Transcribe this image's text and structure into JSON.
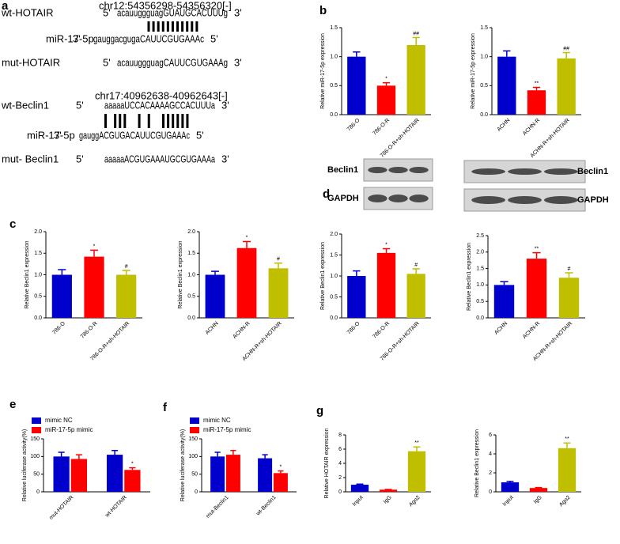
{
  "figure": {
    "panel_labels": [
      "a",
      "b",
      "c",
      "d",
      "e",
      "f",
      "g"
    ]
  },
  "sequence_panel": {
    "blocks": [
      {
        "coordinates": "chr12:54356298-54356320[-]",
        "rows": [
          {
            "name": "wt-HOTAIR",
            "end5": "5'",
            "sequence": "acauuggguagGUAUGCACUUUg",
            "end3": "3'"
          },
          {
            "name": "miR-17-5p",
            "end5": "3'",
            "sequence": "gauggacgugaCAUUCGUGAAAc",
            "end3": "5'"
          },
          {
            "name": "mut-HOTAIR",
            "end5": "5'",
            "sequence": "acauuggguagCAUUCGUGAAAg",
            "end3": "3'"
          }
        ]
      },
      {
        "coordinates": "chr17:40962638-40962643[-]",
        "rows": [
          {
            "name": "wt-Beclin1",
            "end5": "5'",
            "sequence": "aaaaaUCCACAAAAGCCACUUUa",
            "end3": "3'"
          },
          {
            "name": "miR-17-5p",
            "end5": "3'",
            "sequence": "gauggACGUGACAUUCGUGAAAc",
            "end3": "5'"
          },
          {
            "name": "mut- Beclin1",
            "end5": "5'",
            "sequence": "aaaaaACGUGAAAUGCGUGAAAa",
            "end3": "3'"
          }
        ]
      }
    ]
  },
  "chart_data": [
    {
      "type": "bar",
      "ylabel": "Relative miR-17-5p expression",
      "categories": [
        "786-O",
        "786-O-R",
        "786-O-R+sh-HOTAIR"
      ],
      "values": [
        1.0,
        0.5,
        1.2
      ],
      "errors": [
        0.08,
        0.05,
        0.13
      ],
      "annotations": [
        null,
        "*",
        "##"
      ],
      "colors": [
        "#0000cc",
        "#ff0000",
        "#bfbf00"
      ],
      "ylim": [
        0,
        1.5
      ],
      "yticks": [
        {
          "value": 0,
          "label": "0.0"
        },
        {
          "value": 0.5,
          "label": "0.5"
        },
        {
          "value": 1,
          "label": "1.0"
        },
        {
          "value": 1.5,
          "label": "1.5"
        }
      ]
    },
    {
      "type": "bar",
      "ylabel": "Relative miR-17-5p expression",
      "categories": [
        "ACHN",
        "ACHN-R",
        "ACHN-R+sh-HOTAIR"
      ],
      "values": [
        1.0,
        0.42,
        0.97
      ],
      "errors": [
        0.1,
        0.05,
        0.1
      ],
      "annotations": [
        null,
        "**",
        "##"
      ],
      "colors": [
        "#0000cc",
        "#ff0000",
        "#bfbf00"
      ],
      "ylim": [
        0,
        1.5
      ],
      "yticks": [
        {
          "value": 0,
          "label": "0.0"
        },
        {
          "value": 0.5,
          "label": "0.5"
        },
        {
          "value": 1,
          "label": "1.0"
        },
        {
          "value": 1.5,
          "label": "1.5"
        }
      ]
    },
    {
      "type": "bar",
      "ylabel": "Relative Beclin1 expression",
      "categories": [
        "786-O",
        "786-O-R",
        "786-O-R+sh-HOTAIR"
      ],
      "values": [
        1.0,
        1.42,
        1.0
      ],
      "errors": [
        0.12,
        0.15,
        0.1
      ],
      "annotations": [
        null,
        "*",
        "#"
      ],
      "colors": [
        "#0000cc",
        "#ff0000",
        "#bfbf00"
      ],
      "ylim": [
        0,
        2
      ],
      "yticks": [
        {
          "value": 0,
          "label": "0.0"
        },
        {
          "value": 0.5,
          "label": "0.5"
        },
        {
          "value": 1,
          "label": "1.0"
        },
        {
          "value": 1.5,
          "label": "1.5"
        },
        {
          "value": 2,
          "label": "2.0"
        }
      ]
    },
    {
      "type": "bar",
      "ylabel": "Relative Beclin1 expression",
      "categories": [
        "ACHN",
        "ACHN-R",
        "ACHN-R+sh-HOTAIR"
      ],
      "values": [
        1.0,
        1.62,
        1.15
      ],
      "errors": [
        0.08,
        0.15,
        0.12
      ],
      "annotations": [
        null,
        "*",
        "#"
      ],
      "colors": [
        "#0000cc",
        "#ff0000",
        "#bfbf00"
      ],
      "ylim": [
        0,
        2
      ],
      "yticks": [
        {
          "value": 0,
          "label": "0.0"
        },
        {
          "value": 0.5,
          "label": "0.5"
        },
        {
          "value": 1,
          "label": "1.0"
        },
        {
          "value": 1.5,
          "label": "1.5"
        },
        {
          "value": 2,
          "label": "2.0"
        }
      ]
    },
    {
      "type": "bar",
      "ylabel": "Relative Beclin1 expression",
      "blot_labels": [
        "Beclin1",
        "GAPDH"
      ],
      "categories": [
        "786-O",
        "786-O-R",
        "786-O-R+sh-HOTAIR"
      ],
      "values": [
        1.0,
        1.55,
        1.05
      ],
      "errors": [
        0.12,
        0.1,
        0.12
      ],
      "annotations": [
        null,
        "*",
        "#"
      ],
      "colors": [
        "#0000cc",
        "#ff0000",
        "#bfbf00"
      ],
      "ylim": [
        0,
        2
      ],
      "yticks": [
        {
          "value": 0,
          "label": "0.0"
        },
        {
          "value": 0.5,
          "label": "0.5"
        },
        {
          "value": 1,
          "label": "1.0"
        },
        {
          "value": 1.5,
          "label": "1.5"
        },
        {
          "value": 2,
          "label": "2.0"
        }
      ]
    },
    {
      "type": "bar",
      "ylabel": "Relative Beclin1 expression",
      "blot_labels": [
        "Beclin1",
        "GAPDH"
      ],
      "categories": [
        "ACHN",
        "ACHN-R",
        "ACHN-R+sh-HOTAIR"
      ],
      "values": [
        1.0,
        1.8,
        1.22
      ],
      "errors": [
        0.1,
        0.18,
        0.15
      ],
      "annotations": [
        null,
        "**",
        "#"
      ],
      "colors": [
        "#0000cc",
        "#ff0000",
        "#bfbf00"
      ],
      "ylim": [
        0,
        2.5
      ],
      "yticks": [
        {
          "value": 0,
          "label": "0.0"
        },
        {
          "value": 0.5,
          "label": "0.5"
        },
        {
          "value": 1,
          "label": "1.0"
        },
        {
          "value": 1.5,
          "label": "1.5"
        },
        {
          "value": 2,
          "label": "2.0"
        },
        {
          "value": 2.5,
          "label": "2.5"
        }
      ]
    },
    {
      "type": "bar",
      "ylabel": "Relative luciferase activity(%)",
      "legend": "top-left",
      "categories": [
        "mut-HOTAIR",
        "wt-HOTAIR"
      ],
      "series": [
        {
          "name": "mimic NC",
          "color": "#0000cc",
          "values": [
            100,
            105
          ],
          "errors": [
            12,
            12
          ],
          "annotations": [
            null,
            null
          ]
        },
        {
          "name": "miR-17-5p mimic",
          "color": "#ff0000",
          "values": [
            93,
            62
          ],
          "errors": [
            12,
            6
          ],
          "annotations": [
            null,
            "*"
          ]
        }
      ],
      "ylim": [
        0,
        150
      ],
      "yticks": [
        0,
        50,
        100,
        150
      ]
    },
    {
      "type": "bar",
      "ylabel": "Relative luciferase activity(%)",
      "legend": "top-left",
      "categories": [
        "mut-Beclin1",
        "wt-Beclin1"
      ],
      "series": [
        {
          "name": "mimic NC",
          "color": "#0000cc",
          "values": [
            100,
            95
          ],
          "errors": [
            12,
            10
          ],
          "annotations": [
            null,
            null
          ]
        },
        {
          "name": "miR-17-5p mimic",
          "color": "#ff0000",
          "values": [
            105,
            53
          ],
          "errors": [
            12,
            6
          ],
          "annotations": [
            null,
            "*"
          ]
        }
      ],
      "ylim": [
        0,
        150
      ],
      "yticks": [
        0,
        50,
        100,
        150
      ]
    },
    {
      "type": "bar",
      "ylabel": "Relative HOTAIR expression",
      "categories": [
        "Input",
        "IgG",
        "Ago2"
      ],
      "values": [
        1.0,
        0.3,
        5.7
      ],
      "errors": [
        0.08,
        0.03,
        0.6
      ],
      "annotations": [
        null,
        null,
        "**"
      ],
      "colors": [
        "#0000cc",
        "#ff0000",
        "#bfbf00"
      ],
      "ylim": [
        0,
        8
      ],
      "yticks": [
        0,
        2,
        4,
        6,
        8
      ]
    },
    {
      "type": "bar",
      "ylabel": "Relative Beclin1 expression",
      "categories": [
        "Input",
        "IgG",
        "Ago2"
      ],
      "values": [
        1.0,
        0.4,
        4.6
      ],
      "errors": [
        0.1,
        0.05,
        0.55
      ],
      "annotations": [
        null,
        null,
        "**"
      ],
      "colors": [
        "#0000cc",
        "#ff0000",
        "#bfbf00"
      ],
      "ylim": [
        0,
        6
      ],
      "yticks": [
        0,
        2,
        4,
        6
      ]
    }
  ]
}
